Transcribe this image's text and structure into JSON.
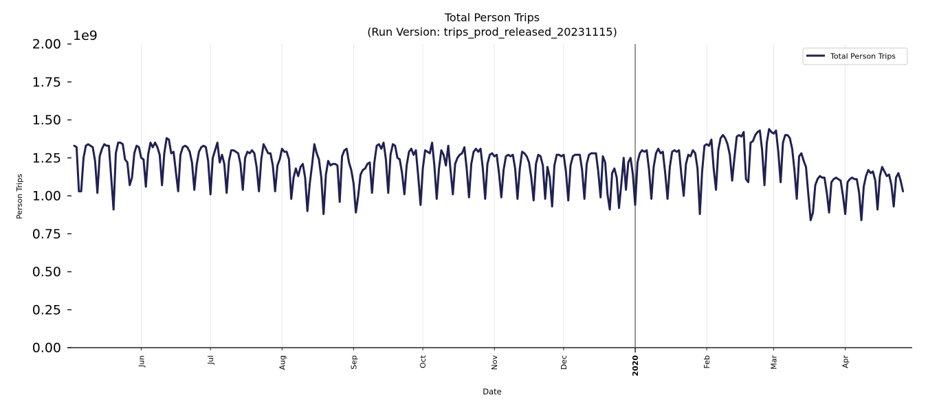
{
  "title": "Total Person Trips",
  "subtitle": "(Run Version: trips_prod_released_20231115)",
  "colors": {
    "line": "#1f2152",
    "grid": "#e6e6e6",
    "axis": "#222222",
    "marker_2020": "#333333"
  },
  "chart_data": {
    "type": "line",
    "title": "Total Person Trips",
    "subtitle": "(Run Version: trips_prod_released_20231115)",
    "xlabel": "Date",
    "ylabel": "Person Trips",
    "y_offset_label": "1e9",
    "ylim": [
      0,
      2.0
    ],
    "y_scale": 1000000000,
    "yticks": [
      0.0,
      0.25,
      0.5,
      0.75,
      1.0,
      1.25,
      1.5,
      1.75,
      2.0
    ],
    "ytick_labels": [
      "0.00",
      "0.25",
      "0.50",
      "0.75",
      "1.00",
      "1.25",
      "1.50",
      "1.75",
      "2.00"
    ],
    "xticks": [
      {
        "label": "Jun",
        "date": "2019-06-01",
        "bold": false
      },
      {
        "label": "Jul",
        "date": "2019-07-01",
        "bold": false
      },
      {
        "label": "Aug",
        "date": "2019-08-01",
        "bold": false
      },
      {
        "label": "Sep",
        "date": "2019-09-01",
        "bold": false
      },
      {
        "label": "Oct",
        "date": "2019-10-01",
        "bold": false
      },
      {
        "label": "Nov",
        "date": "2019-11-01",
        "bold": false
      },
      {
        "label": "Dec",
        "date": "2019-12-01",
        "bold": false
      },
      {
        "label": "2020",
        "date": "2020-01-01",
        "bold": true
      },
      {
        "label": "Feb",
        "date": "2020-02-01",
        "bold": false
      },
      {
        "label": "Mar",
        "date": "2020-03-01",
        "bold": false
      },
      {
        "label": "Apr",
        "date": "2020-04-01",
        "bold": false
      }
    ],
    "vertical_marker": {
      "date": "2020-01-01"
    },
    "grid": "vertical",
    "legend": {
      "position": "upper right",
      "entries": [
        "Total Person Trips"
      ]
    },
    "x_start": "2019-05-03",
    "x_range": [
      "2019-04-30",
      "2020-04-30"
    ],
    "series": [
      {
        "name": "Total Person Trips",
        "frequency": "daily",
        "start": "2019-05-03",
        "values": [
          1.33,
          1.32,
          1.03,
          1.03,
          1.25,
          1.33,
          1.34,
          1.33,
          1.32,
          1.23,
          1.02,
          1.26,
          1.31,
          1.34,
          1.33,
          1.33,
          1.12,
          0.91,
          1.28,
          1.35,
          1.35,
          1.34,
          1.24,
          1.22,
          1.07,
          1.12,
          1.28,
          1.33,
          1.32,
          1.25,
          1.24,
          1.06,
          1.27,
          1.35,
          1.32,
          1.35,
          1.32,
          1.27,
          1.07,
          1.28,
          1.38,
          1.37,
          1.28,
          1.29,
          1.16,
          1.03,
          1.27,
          1.32,
          1.33,
          1.32,
          1.29,
          1.22,
          1.04,
          1.2,
          1.29,
          1.32,
          1.33,
          1.32,
          1.23,
          1.01,
          1.25,
          1.3,
          1.35,
          1.22,
          1.27,
          1.21,
          1.02,
          1.23,
          1.3,
          1.3,
          1.29,
          1.28,
          1.21,
          1.04,
          1.25,
          1.29,
          1.28,
          1.3,
          1.28,
          1.19,
          1.03,
          1.24,
          1.34,
          1.31,
          1.28,
          1.28,
          1.2,
          1.03,
          1.2,
          1.24,
          1.31,
          1.29,
          1.29,
          1.24,
          0.98,
          1.12,
          1.18,
          1.13,
          1.19,
          1.21,
          1.12,
          0.9,
          1.08,
          1.2,
          1.34,
          1.28,
          1.24,
          1.12,
          0.88,
          1.14,
          1.23,
          1.2,
          1.21,
          1.21,
          1.2,
          0.96,
          1.26,
          1.3,
          1.31,
          1.22,
          1.17,
          1.08,
          0.89,
          1.0,
          1.14,
          1.17,
          1.18,
          1.21,
          1.22,
          1.02,
          1.22,
          1.33,
          1.34,
          1.31,
          1.35,
          1.24,
          1.02,
          1.27,
          1.34,
          1.33,
          1.25,
          1.24,
          1.15,
          1.01,
          1.2,
          1.29,
          1.31,
          1.27,
          1.3,
          1.13,
          0.94,
          1.18,
          1.3,
          1.29,
          1.28,
          1.35,
          1.2,
          0.98,
          1.18,
          1.3,
          1.27,
          1.2,
          1.33,
          1.17,
          1.01,
          1.21,
          1.25,
          1.27,
          1.28,
          1.32,
          1.18,
          0.99,
          1.21,
          1.29,
          1.31,
          1.29,
          1.31,
          1.18,
          0.98,
          1.21,
          1.27,
          1.28,
          1.26,
          1.27,
          1.15,
          0.99,
          1.17,
          1.26,
          1.27,
          1.26,
          1.27,
          1.18,
          0.98,
          1.18,
          1.29,
          1.28,
          1.26,
          1.22,
          1.12,
          0.97,
          1.21,
          1.27,
          1.26,
          1.2,
          0.98,
          1.19,
          1.12,
          0.93,
          1.2,
          1.27,
          1.27,
          1.26,
          1.27,
          1.16,
          0.97,
          1.2,
          1.26,
          1.27,
          1.27,
          1.27,
          1.17,
          0.98,
          1.21,
          1.27,
          1.28,
          1.28,
          1.28,
          1.16,
          0.99,
          1.26,
          1.22,
          1.01,
          0.91,
          1.15,
          1.18,
          1.12,
          0.92,
          1.08,
          1.25,
          1.04,
          1.22,
          1.25,
          1.14,
          0.94,
          1.22,
          1.28,
          1.3,
          1.29,
          1.3,
          1.17,
          0.98,
          1.19,
          1.28,
          1.31,
          1.28,
          1.29,
          1.15,
          0.98,
          1.19,
          1.29,
          1.3,
          1.29,
          1.3,
          1.14,
          1.0,
          1.21,
          1.27,
          1.26,
          1.3,
          1.28,
          1.18,
          0.88,
          1.16,
          1.33,
          1.34,
          1.33,
          1.37,
          1.18,
          1.04,
          1.3,
          1.38,
          1.4,
          1.38,
          1.34,
          1.27,
          1.1,
          1.25,
          1.39,
          1.4,
          1.39,
          1.42,
          1.11,
          1.09,
          1.35,
          1.36,
          1.4,
          1.42,
          1.43,
          1.3,
          1.07,
          1.35,
          1.44,
          1.42,
          1.41,
          1.43,
          1.29,
          1.09,
          1.35,
          1.4,
          1.4,
          1.38,
          1.31,
          1.17,
          0.98,
          1.26,
          1.28,
          1.23,
          1.19,
          1.01,
          0.84,
          0.89,
          1.07,
          1.11,
          1.13,
          1.12,
          1.12,
          1.02,
          0.89,
          1.09,
          1.11,
          1.12,
          1.11,
          1.1,
          1.0,
          0.88,
          1.09,
          1.11,
          1.12,
          1.11,
          1.11,
          1.02,
          0.84,
          1.06,
          1.13,
          1.17,
          1.15,
          1.16,
          1.1,
          0.91,
          1.13,
          1.19,
          1.16,
          1.13,
          1.14,
          1.07,
          0.93,
          1.12,
          1.15,
          1.1,
          1.03
        ]
      }
    ]
  }
}
